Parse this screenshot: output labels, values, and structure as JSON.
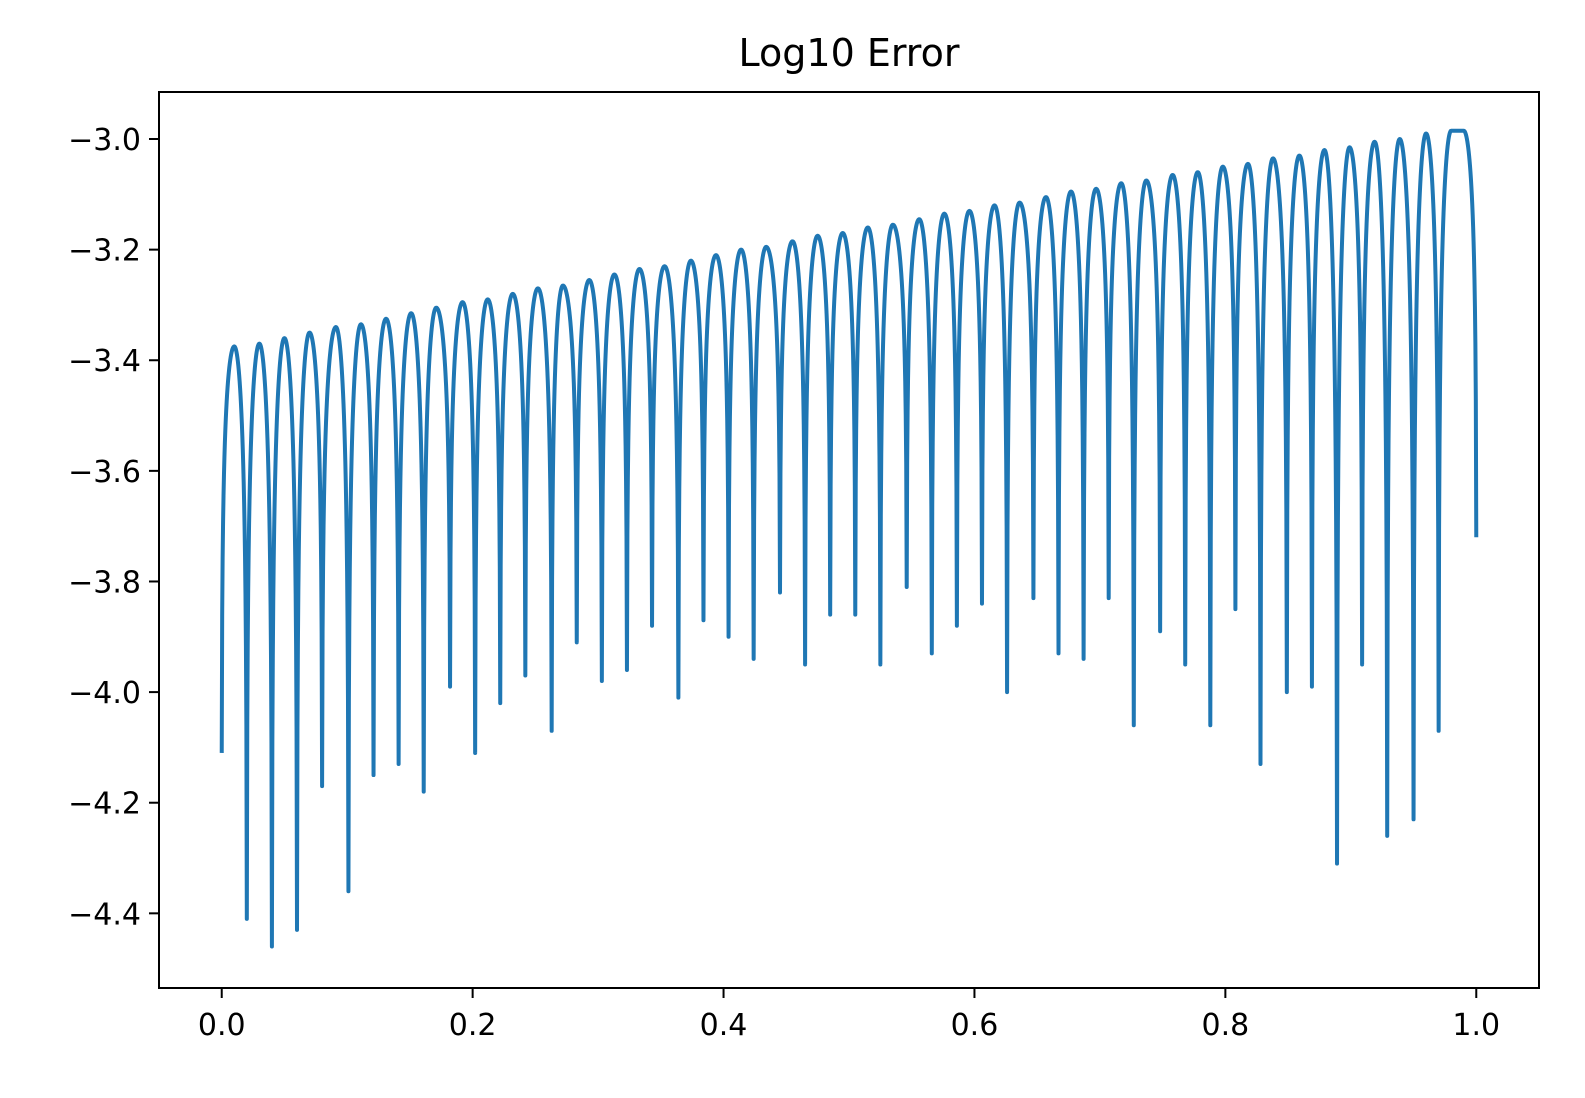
{
  "chart_data": {
    "type": "line",
    "title": "Log10 Error",
    "xlabel": "",
    "ylabel": "",
    "xlim": [
      -0.05,
      1.05
    ],
    "ylim": [
      -4.535,
      -2.915
    ],
    "grid": false,
    "legend": "none",
    "x_ticks": [
      0.0,
      0.2,
      0.4,
      0.6,
      0.8,
      1.0
    ],
    "x_tick_labels": [
      "0.0",
      "0.2",
      "0.4",
      "0.6",
      "0.8",
      "1.0"
    ],
    "y_ticks": [
      -3.0,
      -3.2,
      -3.4,
      -3.6,
      -3.8,
      -4.0,
      -4.2,
      -4.4
    ],
    "y_tick_labels": [
      "−3.0",
      "−3.2",
      "−3.4",
      "−3.6",
      "−3.8",
      "−4.0",
      "−4.2",
      "−4.4"
    ],
    "series": [
      {
        "color": "#1f77b4",
        "x_start": 0.0,
        "x_end": 1.0,
        "y_start": -4.11,
        "y_end": -3.72,
        "peak_x": [
          0.01,
          0.03,
          0.05,
          0.07,
          0.091,
          0.111,
          0.131,
          0.151,
          0.171,
          0.192,
          0.212,
          0.232,
          0.252,
          0.272,
          0.293,
          0.313,
          0.333,
          0.353,
          0.374,
          0.394,
          0.414,
          0.434,
          0.455,
          0.475,
          0.495,
          0.515,
          0.535,
          0.556,
          0.576,
          0.596,
          0.616,
          0.636,
          0.657,
          0.677,
          0.697,
          0.717,
          0.737,
          0.758,
          0.778,
          0.798,
          0.818,
          0.838,
          0.859,
          0.879,
          0.899,
          0.919,
          0.939,
          0.96,
          0.98,
          0.99
        ],
        "peak_y": [
          -3.375,
          -3.37,
          -3.36,
          -3.35,
          -3.34,
          -3.335,
          -3.325,
          -3.315,
          -3.305,
          -3.295,
          -3.29,
          -3.28,
          -3.27,
          -3.265,
          -3.255,
          -3.245,
          -3.235,
          -3.23,
          -3.22,
          -3.21,
          -3.2,
          -3.195,
          -3.185,
          -3.175,
          -3.17,
          -3.16,
          -3.155,
          -3.145,
          -3.135,
          -3.13,
          -3.12,
          -3.115,
          -3.105,
          -3.095,
          -3.09,
          -3.08,
          -3.075,
          -3.065,
          -3.06,
          -3.05,
          -3.045,
          -3.035,
          -3.03,
          -3.02,
          -3.015,
          -3.005,
          -3.0,
          -2.99,
          -2.985,
          -2.985
        ],
        "dip_x": [
          0.02,
          0.04,
          0.06,
          0.08,
          0.101,
          0.121,
          0.141,
          0.161,
          0.182,
          0.202,
          0.222,
          0.242,
          0.263,
          0.283,
          0.303,
          0.323,
          0.343,
          0.364,
          0.384,
          0.404,
          0.424,
          0.445,
          0.465,
          0.485,
          0.505,
          0.525,
          0.546,
          0.566,
          0.586,
          0.606,
          0.626,
          0.647,
          0.667,
          0.687,
          0.707,
          0.727,
          0.748,
          0.768,
          0.788,
          0.808,
          0.828,
          0.849,
          0.869,
          0.889,
          0.909,
          0.929,
          0.95,
          0.97
        ],
        "dip_y": [
          -4.41,
          -4.46,
          -4.43,
          -4.17,
          -4.36,
          -4.15,
          -4.13,
          -4.18,
          -3.99,
          -4.11,
          -4.02,
          -3.97,
          -4.07,
          -3.91,
          -3.98,
          -3.96,
          -3.88,
          -4.01,
          -3.87,
          -3.9,
          -3.94,
          -3.82,
          -3.95,
          -3.86,
          -3.86,
          -3.95,
          -3.81,
          -3.93,
          -3.88,
          -3.84,
          -4.0,
          -3.83,
          -3.93,
          -3.94,
          -3.83,
          -4.06,
          -3.89,
          -3.95,
          -4.06,
          -3.85,
          -4.13,
          -4.0,
          -3.99,
          -4.31,
          -3.95,
          -4.26,
          -4.23,
          -4.07
        ]
      }
    ]
  }
}
